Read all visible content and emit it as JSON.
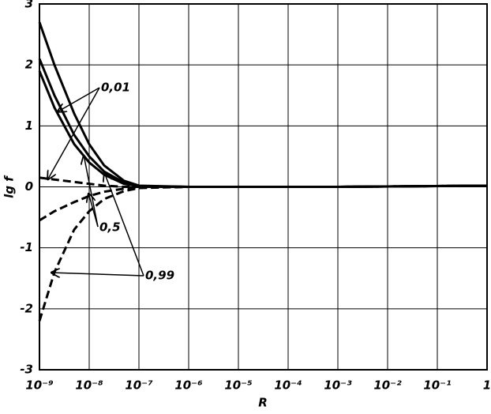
{
  "chart_data": {
    "type": "line",
    "x_label": "R",
    "y_label": "lg f",
    "x_scale": "log",
    "grid": true,
    "xlim": [
      1e-09,
      1
    ],
    "ylim": [
      -3,
      3
    ],
    "xticks": [
      {
        "value": 1e-09,
        "label": "10⁻⁹"
      },
      {
        "value": 1e-08,
        "label": "10⁻⁸"
      },
      {
        "value": 1e-07,
        "label": "10⁻⁷"
      },
      {
        "value": 1e-06,
        "label": "10⁻⁶"
      },
      {
        "value": 1e-05,
        "label": "10⁻⁵"
      },
      {
        "value": 0.0001,
        "label": "10⁻⁴"
      },
      {
        "value": 0.001,
        "label": "10⁻³"
      },
      {
        "value": 0.01,
        "label": "10⁻²"
      },
      {
        "value": 0.1,
        "label": "10⁻¹"
      },
      1
    ],
    "yticks": [
      -3,
      -2,
      -1,
      0,
      1,
      2,
      3
    ],
    "x": [
      1e-09,
      2e-09,
      5e-09,
      1e-08,
      2e-08,
      5e-08,
      1e-07,
      1e-06,
      0.001,
      1
    ],
    "series": [
      {
        "color": "#000000",
        "dashed": false,
        "values": [
          2.7,
          2.0,
          1.2,
          0.7,
          0.35,
          0.1,
          0.02,
          0,
          0,
          0.02
        ]
      },
      {
        "color": "#000000",
        "dashed": false,
        "values": [
          2.1,
          1.5,
          0.85,
          0.5,
          0.25,
          0.07,
          0.01,
          0,
          0,
          0.02
        ]
      },
      {
        "color": "#000000",
        "dashed": false,
        "values": [
          1.9,
          1.3,
          0.7,
          0.4,
          0.2,
          0.05,
          0.01,
          0,
          0,
          0.02
        ]
      },
      {
        "color": "#000000",
        "dashed": true,
        "values": [
          0.15,
          0.12,
          0.08,
          0.05,
          0.02,
          0,
          0,
          0,
          0,
          0.02
        ]
      },
      {
        "color": "#000000",
        "dashed": true,
        "values": [
          -0.55,
          -0.4,
          -0.25,
          -0.15,
          -0.08,
          -0.03,
          -0.01,
          0,
          0,
          0.02
        ]
      },
      {
        "color": "#000000",
        "dashed": true,
        "values": [
          -2.2,
          -1.4,
          -0.7,
          -0.4,
          -0.2,
          -0.07,
          -0.02,
          0,
          0,
          0.02
        ]
      }
    ],
    "annotations": [
      "0,01",
      "0,5",
      "0,99"
    ]
  }
}
